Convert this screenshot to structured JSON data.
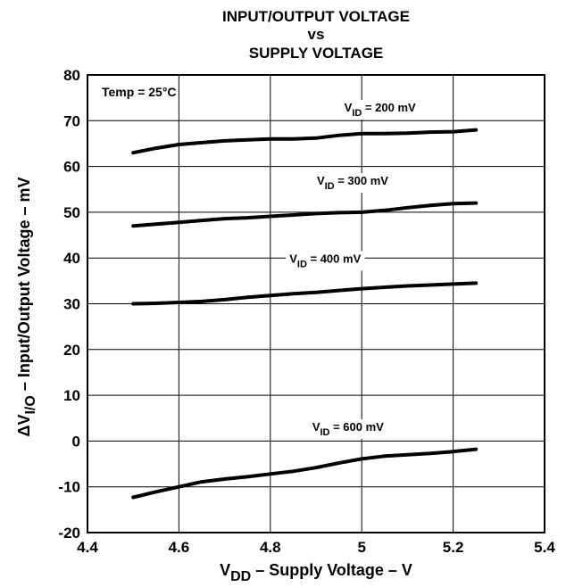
{
  "chart_data": {
    "type": "line",
    "title_lines": [
      "INPUT/OUTPUT VOLTAGE",
      "vs",
      "SUPPLY VOLTAGE"
    ],
    "xlabel": {
      "prefix": "V",
      "sub": "DD",
      "rest": " – Supply Voltage – V"
    },
    "ylabel": {
      "prefix": "ΔV",
      "sub": "I/O",
      "rest": " – Input/Output Voltage – mV"
    },
    "xlim": [
      4.4,
      5.4
    ],
    "ylim": [
      -20,
      80
    ],
    "xticks": [
      "4.4",
      "4.6",
      "4.8",
      "5",
      "5.2",
      "5.4"
    ],
    "yticks": [
      "80",
      "70",
      "60",
      "50",
      "40",
      "30",
      "20",
      "10",
      "0",
      "-10",
      "-20"
    ],
    "grid": true,
    "annotation": "Temp = 25°C",
    "series": [
      {
        "name": "V_ID = 200 mV",
        "label_prefix": "V",
        "label_sub": "ID",
        "label_rest": " = 200 mV",
        "x": [
          4.5,
          4.55,
          4.6,
          4.65,
          4.7,
          4.75,
          4.8,
          4.85,
          4.9,
          4.95,
          5.0,
          5.05,
          5.1,
          5.15,
          5.2,
          5.25
        ],
        "y": [
          63,
          64,
          64.8,
          65.2,
          65.6,
          65.8,
          66,
          66,
          66.2,
          66.8,
          67.2,
          67.2,
          67.3,
          67.5,
          67.6,
          68
        ]
      },
      {
        "name": "V_ID = 300 mV",
        "label_prefix": "V",
        "label_sub": "ID",
        "label_rest": " = 300 mV",
        "x": [
          4.5,
          4.55,
          4.6,
          4.65,
          4.7,
          4.75,
          4.8,
          4.85,
          4.9,
          4.95,
          5.0,
          5.05,
          5.1,
          5.15,
          5.2,
          5.25
        ],
        "y": [
          47,
          47.4,
          47.8,
          48.2,
          48.6,
          48.8,
          49.1,
          49.4,
          49.7,
          49.9,
          50,
          50.4,
          51,
          51.5,
          51.9,
          52
        ]
      },
      {
        "name": "V_ID = 400 mV",
        "label_prefix": "V",
        "label_sub": "ID",
        "label_rest": " = 400 mV",
        "x": [
          4.5,
          4.55,
          4.6,
          4.65,
          4.7,
          4.75,
          4.8,
          4.85,
          4.9,
          4.95,
          5.0,
          5.05,
          5.1,
          5.15,
          5.2,
          5.25
        ],
        "y": [
          30,
          30.1,
          30.3,
          30.5,
          30.9,
          31.4,
          31.8,
          32.2,
          32.5,
          32.9,
          33.3,
          33.6,
          33.9,
          34.1,
          34.3,
          34.5
        ]
      },
      {
        "name": "V_ID = 600 mV",
        "label_prefix": "V",
        "label_sub": "ID",
        "label_rest": " = 600 mV",
        "x": [
          4.5,
          4.55,
          4.6,
          4.65,
          4.7,
          4.75,
          4.8,
          4.85,
          4.9,
          4.95,
          5.0,
          5.05,
          5.1,
          5.15,
          5.2,
          5.25
        ],
        "y": [
          -12.3,
          -11.1,
          -10,
          -8.9,
          -8.3,
          -7.8,
          -7.2,
          -6.6,
          -5.8,
          -4.8,
          -3.9,
          -3.3,
          -3,
          -2.7,
          -2.3,
          -1.8
        ]
      }
    ]
  }
}
